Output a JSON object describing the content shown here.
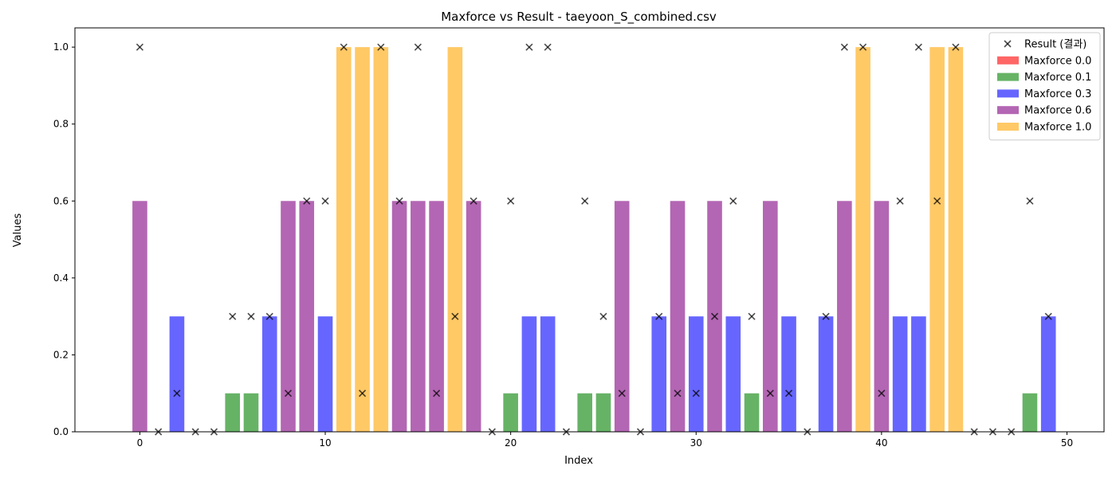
{
  "chart_data": {
    "type": "bar",
    "title": "Maxforce vs Result - taeyoon_S_combined.csv",
    "xlabel": "Index",
    "ylabel": "Values",
    "xlim": [
      -3.5,
      52
    ],
    "ylim": [
      0,
      1.05
    ],
    "x_ticks": [
      0,
      10,
      20,
      30,
      40,
      50
    ],
    "y_ticks": [
      0.0,
      0.2,
      0.4,
      0.6,
      0.8,
      1.0
    ],
    "x_tick_labels": [
      "0",
      "10",
      "20",
      "30",
      "40",
      "50"
    ],
    "y_tick_labels": [
      "0.0",
      "0.2",
      "0.4",
      "0.6",
      "0.8",
      "1.0"
    ],
    "grid": false,
    "legend_position": "top-right",
    "x": [
      0,
      1,
      2,
      3,
      4,
      5,
      6,
      7,
      8,
      9,
      10,
      11,
      12,
      13,
      14,
      15,
      16,
      17,
      18,
      19,
      20,
      21,
      22,
      23,
      24,
      25,
      26,
      27,
      28,
      29,
      30,
      31,
      32,
      33,
      34,
      35,
      36,
      37,
      38,
      39,
      40,
      41,
      42,
      43,
      44,
      45,
      46,
      47,
      48,
      49
    ],
    "maxforce": [
      0.6,
      0.0,
      0.3,
      0.0,
      0.0,
      0.1,
      0.1,
      0.3,
      0.6,
      0.6,
      0.3,
      1.0,
      1.0,
      1.0,
      0.6,
      0.6,
      0.6,
      1.0,
      0.6,
      0.0,
      0.1,
      0.3,
      0.3,
      0.0,
      0.1,
      0.1,
      0.6,
      0.0,
      0.3,
      0.6,
      0.3,
      0.6,
      0.3,
      0.1,
      0.6,
      0.3,
      0.0,
      0.3,
      0.6,
      1.0,
      0.6,
      0.3,
      0.3,
      1.0,
      1.0,
      0.0,
      0.0,
      0.0,
      0.1,
      0.3
    ],
    "result": [
      1.0,
      0.0,
      0.1,
      0.0,
      0.0,
      0.3,
      0.3,
      0.3,
      0.1,
      0.6,
      0.6,
      1.0,
      0.1,
      1.0,
      0.6,
      1.0,
      0.1,
      0.3,
      0.6,
      0.0,
      0.6,
      1.0,
      1.0,
      0.0,
      0.6,
      0.3,
      0.1,
      0.0,
      0.3,
      0.1,
      0.1,
      0.3,
      0.6,
      0.3,
      0.1,
      0.1,
      0.0,
      0.3,
      1.0,
      1.0,
      0.1,
      0.6,
      1.0,
      0.6,
      1.0,
      0.0,
      0.0,
      0.0,
      0.6,
      0.3
    ],
    "series": [
      {
        "name": "Result (결과)",
        "kind": "scatter",
        "marker": "x",
        "color": "#000000"
      },
      {
        "name": "Maxforce 0.0",
        "kind": "bar",
        "level": 0.0,
        "color": "#ff0000"
      },
      {
        "name": "Maxforce 0.1",
        "kind": "bar",
        "level": 0.1,
        "color": "#008000"
      },
      {
        "name": "Maxforce 0.3",
        "kind": "bar",
        "level": 0.3,
        "color": "#0000ff"
      },
      {
        "name": "Maxforce 0.6",
        "kind": "bar",
        "level": 0.6,
        "color": "#800080"
      },
      {
        "name": "Maxforce 1.0",
        "kind": "bar",
        "level": 1.0,
        "color": "#ffa500"
      }
    ]
  }
}
